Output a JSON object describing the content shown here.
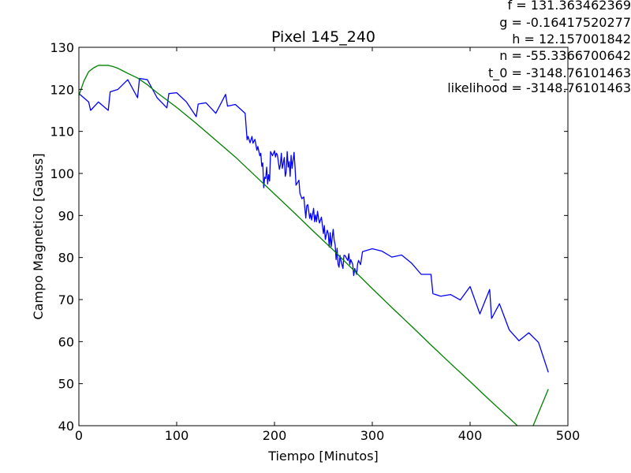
{
  "chart_data": {
    "type": "line",
    "title": "Pixel 145_240",
    "xlabel": "Tiempo [Minutos]",
    "ylabel": "Campo Magnetico [Gauss]",
    "xlim": [
      0,
      500
    ],
    "ylim": [
      40,
      130
    ],
    "xticks": [
      "0",
      "100",
      "200",
      "300",
      "400",
      "500"
    ],
    "yticks": [
      "40",
      "50",
      "60",
      "70",
      "80",
      "90",
      "100",
      "110",
      "120",
      "130"
    ],
    "grid": false,
    "legend": "none",
    "annotations": [
      "f = 131.363462369",
      "g = -0.16417520277",
      "h = 12.157001842",
      "n = -55.3366700642",
      "t_0 = -3148.76101463",
      "likelihood = -3148.76101463"
    ],
    "series": [
      {
        "color": "#0000ff",
        "x": [
          0,
          10,
          12,
          20,
          30,
          32,
          40,
          50,
          60,
          62,
          70,
          80,
          90,
          92,
          100,
          110,
          120,
          122,
          130,
          140,
          150,
          152,
          160,
          170,
          172,
          173,
          175,
          177,
          178,
          180,
          182,
          183,
          185,
          186,
          187,
          188,
          189,
          190,
          191,
          192,
          193,
          194,
          195,
          196,
          198,
          200,
          201,
          202,
          203,
          205,
          206,
          207,
          208,
          210,
          211,
          212,
          213,
          214,
          215,
          216,
          217,
          218,
          220,
          221,
          222,
          225,
          226,
          228,
          230,
          232,
          233,
          234,
          235,
          236,
          237,
          238,
          240,
          241,
          242,
          243,
          244,
          245,
          246,
          248,
          250,
          251,
          252,
          254,
          255,
          256,
          257,
          258,
          260,
          261,
          262,
          263,
          264,
          265,
          266,
          267,
          268,
          270,
          271,
          272,
          275,
          276,
          277,
          278,
          280,
          281,
          282,
          284,
          285,
          286,
          288,
          290,
          300,
          310,
          320,
          330,
          340,
          350,
          360,
          362,
          370,
          380,
          390,
          400,
          410,
          420,
          422,
          430,
          440,
          450,
          460,
          470,
          480
        ],
        "y": [
          119,
          117,
          115,
          117,
          115,
          119.4,
          120,
          122.3,
          118,
          122.6,
          122.3,
          118,
          115.6,
          119,
          119.2,
          117,
          113.5,
          116.5,
          116.8,
          114.3,
          118.8,
          116,
          116.4,
          114.3,
          108,
          108.8,
          107.3,
          108.8,
          107.2,
          108.1,
          105.5,
          106.4,
          104.2,
          104.8,
          101.7,
          102.5,
          96.6,
          99.1,
          98.8,
          101.5,
          97.5,
          99.7,
          98.2,
          105.2,
          104.2,
          105.4,
          103.9,
          104.8,
          104.4,
          101,
          102,
          104.8,
          101.2,
          103.8,
          99.3,
          100.4,
          105.2,
          101.5,
          102.8,
          99.3,
          104.3,
          101.2,
          105,
          101.6,
          97.2,
          98.4,
          95.3,
          94,
          94.4,
          89.4,
          92.3,
          92.6,
          91.1,
          89.3,
          90.5,
          88.9,
          91.7,
          88.5,
          90.1,
          88.5,
          91,
          89.4,
          88.2,
          89.6,
          85.7,
          87.6,
          84.3,
          86.5,
          85.7,
          82.5,
          85.9,
          82.6,
          86.7,
          84.2,
          83.1,
          79.5,
          82.2,
          78.4,
          77.7,
          80.5,
          79.2,
          77.4,
          80.5,
          80.5,
          79.3,
          80.9,
          78.3,
          79.5,
          78.4,
          75.7,
          77.4,
          76,
          78.5,
          79.3,
          78.3,
          81.4,
          82.1,
          81.5,
          80.1,
          80.6,
          78.7,
          76,
          76,
          71.4,
          70.8,
          71.2,
          69.9,
          73.1,
          66.6,
          72.4,
          65.5,
          69,
          62.8,
          60.2,
          62.1,
          59.8,
          52.7
        ]
      },
      {
        "color": "#008000",
        "x": [
          0,
          5,
          10,
          15,
          20,
          25,
          30,
          35,
          40,
          45,
          50,
          60,
          70,
          80,
          100,
          120,
          140,
          160,
          180,
          200,
          220,
          240,
          260,
          280,
          300,
          320,
          340,
          360,
          380,
          400,
          420,
          440,
          460,
          480
        ],
        "y": [
          118.5,
          121.9,
          124.2,
          125.1,
          125.7,
          125.7,
          125.7,
          125.4,
          125,
          124.4,
          123.8,
          122.7,
          121.1,
          119.2,
          115.7,
          111.9,
          107.9,
          103.9,
          99.5,
          95.1,
          90.7,
          86.2,
          81.8,
          77.2,
          72.6,
          68.1,
          63.7,
          59.2,
          54.8,
          50.5,
          46.1,
          41.8,
          37.5,
          48.7
        ]
      }
    ]
  }
}
